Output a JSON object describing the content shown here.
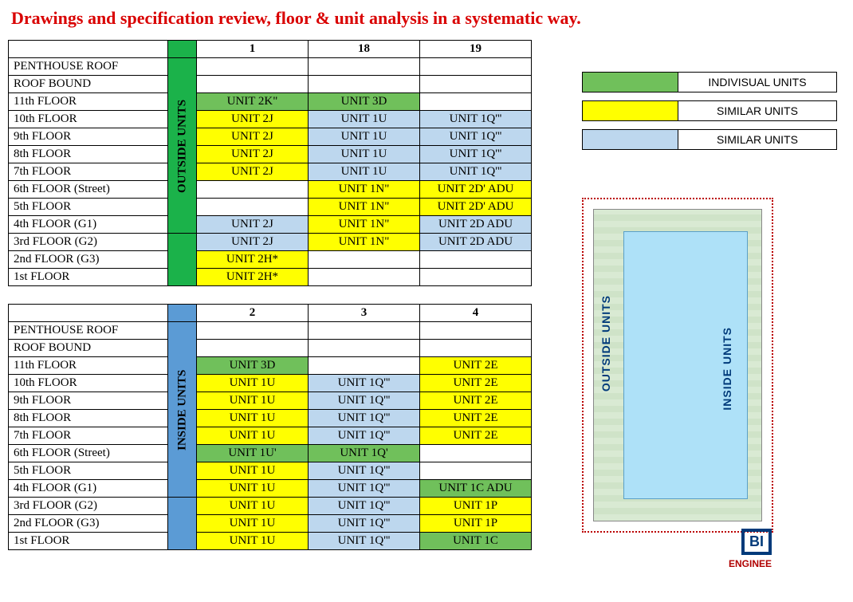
{
  "title": "Drawings and specification review, floor & unit analysis in a systematic way.",
  "colors": {
    "individual": "#70c05b",
    "similar_yellow": "#ffff00",
    "similar_blue": "#bdd7ee",
    "outside_header": "#1bb24a",
    "inside_header": "#5b9bd5"
  },
  "legend": [
    {
      "color": "individual",
      "label": "INDIVISUAL UNITS"
    },
    {
      "color": "similar_yellow",
      "label": "SIMILAR UNITS"
    },
    {
      "color": "similar_blue",
      "label": "SIMILAR UNITS"
    }
  ],
  "tables": [
    {
      "side_label": "OUTSIDE UNITS",
      "side_color": "outside_header",
      "side_span": 10,
      "columns": [
        "1",
        "18",
        "19"
      ],
      "rows": [
        {
          "label": "PENTHOUSE ROOF",
          "cells": [
            null,
            null,
            null
          ]
        },
        {
          "label": "ROOF BOUND",
          "cells": [
            null,
            null,
            null
          ]
        },
        {
          "label": "11th FLOOR",
          "cells": [
            [
              "UNIT 2K\"",
              "individual"
            ],
            [
              "UNIT 3D",
              "individual"
            ],
            null
          ]
        },
        {
          "label": "10th FLOOR",
          "cells": [
            [
              "UNIT 2J",
              "similar_yellow"
            ],
            [
              "UNIT 1U",
              "similar_blue"
            ],
            [
              "UNIT 1Q'''",
              "similar_blue"
            ]
          ]
        },
        {
          "label": "9th FLOOR",
          "cells": [
            [
              "UNIT 2J",
              "similar_yellow"
            ],
            [
              "UNIT 1U",
              "similar_blue"
            ],
            [
              "UNIT 1Q'''",
              "similar_blue"
            ]
          ]
        },
        {
          "label": "8th FLOOR",
          "cells": [
            [
              "UNIT 2J",
              "similar_yellow"
            ],
            [
              "UNIT 1U",
              "similar_blue"
            ],
            [
              "UNIT 1Q'''",
              "similar_blue"
            ]
          ]
        },
        {
          "label": "7th FLOOR",
          "cells": [
            [
              "UNIT 2J",
              "similar_yellow"
            ],
            [
              "UNIT 1U",
              "similar_blue"
            ],
            [
              "UNIT 1Q'''",
              "similar_blue"
            ]
          ]
        },
        {
          "label": "6th FLOOR (Street)",
          "cells": [
            null,
            [
              "UNIT 1N\"",
              "similar_yellow"
            ],
            [
              "UNIT 2D' ADU",
              "similar_yellow"
            ]
          ]
        },
        {
          "label": "5th FLOOR",
          "cells": [
            null,
            [
              "UNIT 1N\"",
              "similar_yellow"
            ],
            [
              "UNIT 2D' ADU",
              "similar_yellow"
            ]
          ]
        },
        {
          "label": "4th FLOOR (G1)",
          "cells": [
            [
              "UNIT 2J",
              "similar_blue"
            ],
            [
              "UNIT 1N\"",
              "similar_yellow"
            ],
            [
              "UNIT 2D ADU",
              "similar_blue"
            ]
          ]
        },
        {
          "label": "3rd FLOOR (G2)",
          "cells": [
            [
              "UNIT 2J",
              "similar_blue"
            ],
            [
              "UNIT 1N\"",
              "similar_yellow"
            ],
            [
              "UNIT 2D ADU",
              "similar_blue"
            ]
          ]
        },
        {
          "label": "2nd FLOOR (G3)",
          "cells": [
            [
              "UNIT 2H*",
              "similar_yellow"
            ],
            null,
            null
          ]
        },
        {
          "label": "1st FLOOR",
          "cells": [
            [
              "UNIT 2H*",
              "similar_yellow"
            ],
            null,
            null
          ]
        }
      ]
    },
    {
      "side_label": "INSIDE UNITS",
      "side_color": "inside_header",
      "side_span": 10,
      "columns": [
        "2",
        "3",
        "4"
      ],
      "rows": [
        {
          "label": "PENTHOUSE ROOF",
          "cells": [
            null,
            null,
            null
          ]
        },
        {
          "label": "ROOF BOUND",
          "cells": [
            null,
            null,
            null
          ]
        },
        {
          "label": "11th FLOOR",
          "cells": [
            [
              "UNIT 3D",
              "individual"
            ],
            null,
            [
              "UNIT 2E",
              "similar_yellow"
            ]
          ]
        },
        {
          "label": "10th FLOOR",
          "cells": [
            [
              "UNIT 1U",
              "similar_yellow"
            ],
            [
              "UNIT 1Q'''",
              "similar_blue"
            ],
            [
              "UNIT 2E",
              "similar_yellow"
            ]
          ]
        },
        {
          "label": "9th FLOOR",
          "cells": [
            [
              "UNIT 1U",
              "similar_yellow"
            ],
            [
              "UNIT 1Q'''",
              "similar_blue"
            ],
            [
              "UNIT 2E",
              "similar_yellow"
            ]
          ]
        },
        {
          "label": "8th FLOOR",
          "cells": [
            [
              "UNIT 1U",
              "similar_yellow"
            ],
            [
              "UNIT 1Q'''",
              "similar_blue"
            ],
            [
              "UNIT 2E",
              "similar_yellow"
            ]
          ]
        },
        {
          "label": "7th FLOOR",
          "cells": [
            [
              "UNIT 1U",
              "similar_yellow"
            ],
            [
              "UNIT 1Q'''",
              "similar_blue"
            ],
            [
              "UNIT 2E",
              "similar_yellow"
            ]
          ]
        },
        {
          "label": "6th FLOOR (Street)",
          "cells": [
            [
              "UNIT 1U'",
              "individual"
            ],
            [
              "UNIT 1Q'",
              "individual"
            ],
            null
          ]
        },
        {
          "label": "5th FLOOR",
          "cells": [
            [
              "UNIT 1U",
              "similar_yellow"
            ],
            [
              "UNIT 1Q'''",
              "similar_blue"
            ],
            null
          ]
        },
        {
          "label": "4th FLOOR (G1)",
          "cells": [
            [
              "UNIT 1U",
              "similar_yellow"
            ],
            [
              "UNIT 1Q'''",
              "similar_blue"
            ],
            [
              "UNIT 1C ADU",
              "individual"
            ]
          ]
        },
        {
          "label": "3rd FLOOR (G2)",
          "cells": [
            [
              "UNIT 1U",
              "similar_yellow"
            ],
            [
              "UNIT 1Q'''",
              "similar_blue"
            ],
            [
              "UNIT 1P",
              "similar_yellow"
            ]
          ]
        },
        {
          "label": "2nd FLOOR (G3)",
          "cells": [
            [
              "UNIT 1U",
              "similar_yellow"
            ],
            [
              "UNIT 1Q'''",
              "similar_blue"
            ],
            [
              "UNIT 1P",
              "similar_yellow"
            ]
          ]
        },
        {
          "label": "1st FLOOR",
          "cells": [
            [
              "UNIT 1U",
              "similar_yellow"
            ],
            [
              "UNIT 1Q'''",
              "similar_blue"
            ],
            [
              "UNIT 1C",
              "individual"
            ]
          ]
        }
      ]
    }
  ],
  "plan": {
    "outside_label": "OUTSIDE UNITS",
    "inside_label": "INSIDE UNITS"
  },
  "logo": {
    "text": "BI",
    "sub": "ENGINEE"
  }
}
